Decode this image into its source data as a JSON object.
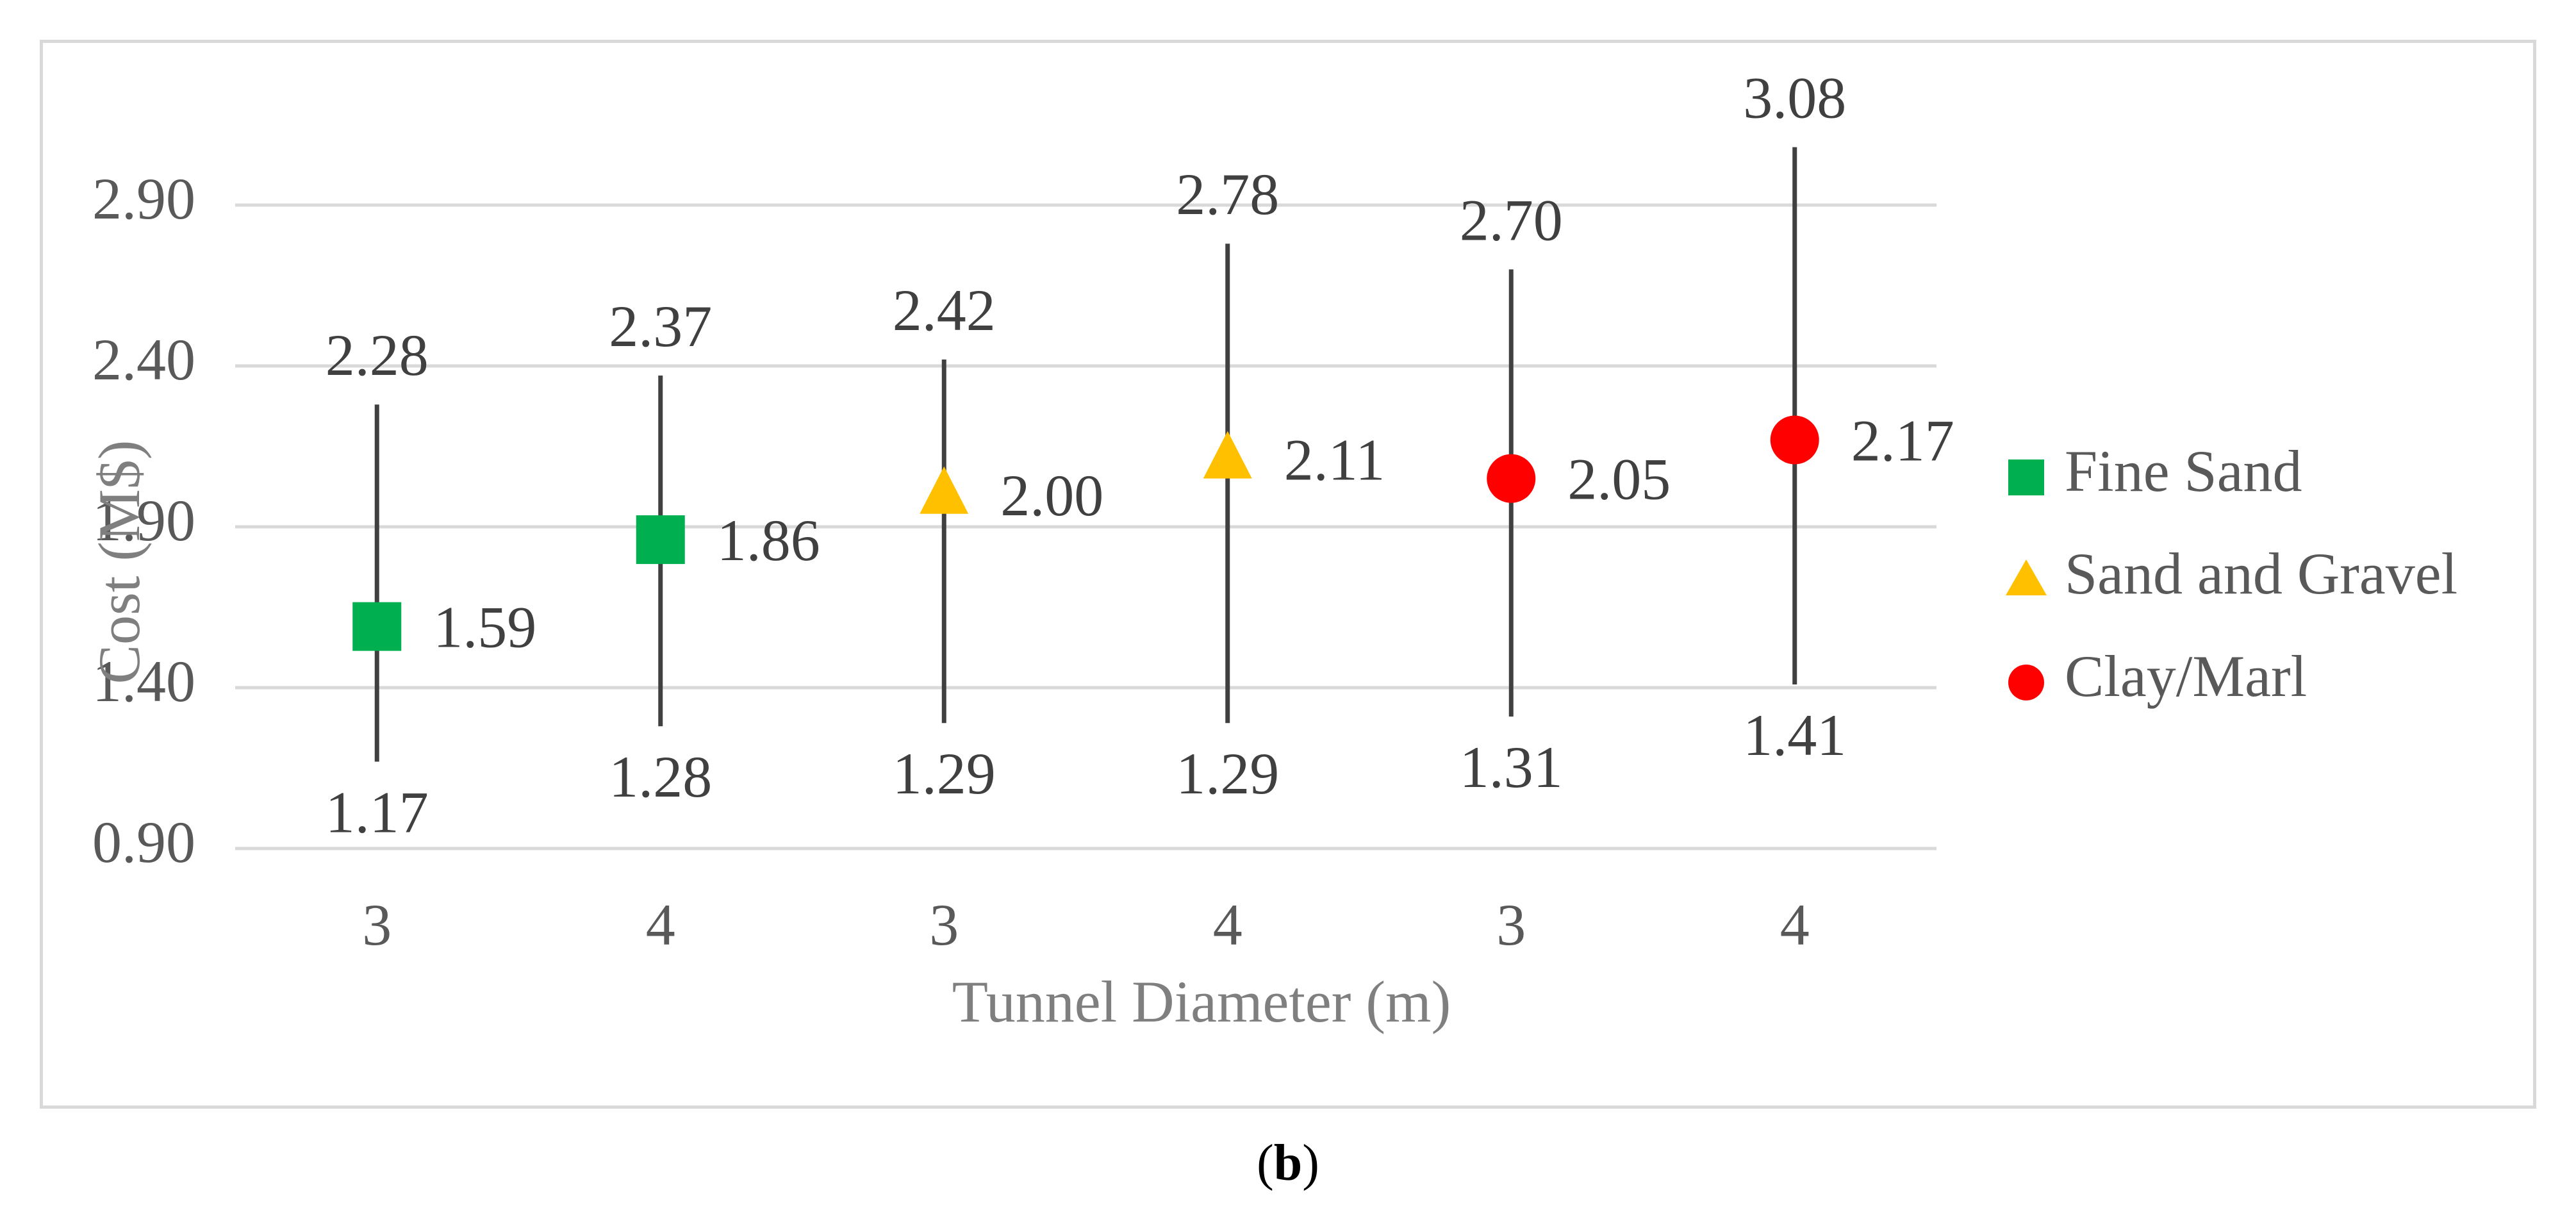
{
  "chart_data": {
    "type": "scatter",
    "ylabel": "Cost (M$)",
    "xlabel": "Tunnel Diameter (m)",
    "categories": [
      "3",
      "4",
      "3",
      "4",
      "3",
      "4"
    ],
    "ylim": [
      0.9,
      3.15
    ],
    "yticks": [
      "0.90",
      "1.40",
      "1.90",
      "2.40",
      "2.90"
    ],
    "ytick_values": [
      0.9,
      1.4,
      1.9,
      2.4,
      2.9
    ],
    "grid": true,
    "legend_position": "right",
    "series": [
      {
        "name": "Fine Sand",
        "marker": "square",
        "color": "#00b050",
        "points": [
          {
            "index": 0,
            "value": 1.59,
            "value_label": "1.59",
            "min": 1.17,
            "min_label": "1.17",
            "max": 2.28,
            "max_label": "2.28"
          },
          {
            "index": 1,
            "value": 1.86,
            "value_label": "1.86",
            "min": 1.28,
            "min_label": "1.28",
            "max": 2.37,
            "max_label": "2.37"
          }
        ]
      },
      {
        "name": "Sand and Gravel",
        "marker": "triangle",
        "color": "#ffc000",
        "points": [
          {
            "index": 2,
            "value": 2.0,
            "value_label": "2.00",
            "min": 1.29,
            "min_label": "1.29",
            "max": 2.42,
            "max_label": "2.42"
          },
          {
            "index": 3,
            "value": 2.11,
            "value_label": "2.11",
            "min": 1.29,
            "min_label": "1.29",
            "max": 2.78,
            "max_label": "2.78"
          }
        ]
      },
      {
        "name": "Clay/Marl",
        "marker": "circle",
        "color": "#ff0000",
        "points": [
          {
            "index": 4,
            "value": 2.05,
            "value_label": "2.05",
            "min": 1.31,
            "min_label": "1.31",
            "max": 2.7,
            "max_label": "2.70"
          },
          {
            "index": 5,
            "value": 2.17,
            "value_label": "2.17",
            "min": 1.41,
            "min_label": "1.41",
            "max": 3.08,
            "max_label": "3.08"
          }
        ]
      }
    ]
  },
  "caption": {
    "open": "(",
    "letter": "b",
    "close": ")"
  }
}
